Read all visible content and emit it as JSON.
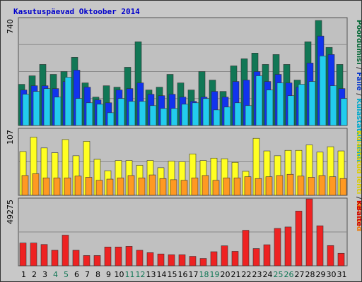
{
  "title": "Kasutuspäevad Oktoober 2014",
  "chart_data": [
    {
      "type": "bar",
      "ymax_label": "740",
      "ymax": 740,
      "side_label_parts": [
        {
          "text": "Pöördumisi",
          "color": "#006633"
        },
        {
          "text": " / ",
          "color": "#333333"
        },
        {
          "text": "Faile",
          "color": "#0033cc"
        },
        {
          "text": " / ",
          "color": "#333333"
        },
        {
          "text": "Külastatud lehti",
          "color": "#00aacc"
        }
      ],
      "series": [
        {
          "name": "Pöördumisi",
          "color": "#117755",
          "values": [
            290,
            350,
            430,
            360,
            380,
            480,
            300,
            200,
            280,
            270,
            410,
            590,
            250,
            270,
            360,
            300,
            250,
            380,
            320,
            240,
            420,
            470,
            510,
            430,
            500,
            430,
            320,
            590,
            740,
            550,
            430
          ]
        },
        {
          "name": "Faile",
          "color": "#1133ee",
          "values": [
            250,
            280,
            280,
            260,
            310,
            390,
            270,
            180,
            160,
            250,
            260,
            300,
            220,
            210,
            220,
            200,
            170,
            200,
            240,
            200,
            310,
            320,
            380,
            310,
            360,
            300,
            270,
            440,
            630,
            500,
            260
          ]
        },
        {
          "name": "Külastatud lehti",
          "color": "#22ccee",
          "values": [
            220,
            240,
            260,
            200,
            340,
            190,
            160,
            150,
            90,
            190,
            170,
            170,
            140,
            120,
            120,
            150,
            160,
            190,
            110,
            130,
            160,
            140,
            350,
            250,
            300,
            210,
            290,
            310,
            490,
            280,
            190
          ]
        }
      ]
    },
    {
      "type": "bar",
      "ymax_label": "107",
      "ymax": 107,
      "side_label_parts": [
        {
          "text": "Külastatud lehti",
          "color": "#ddcc00"
        },
        {
          "text": " / ",
          "color": "#333333"
        },
        {
          "text": "Aruteid",
          "color": "#ee7700"
        }
      ],
      "series": [
        {
          "name": "Külastatud lehti",
          "color": "#ffff22",
          "values": [
            73,
            97,
            79,
            71,
            93,
            66,
            90,
            60,
            41,
            58,
            58,
            50,
            58,
            46,
            57,
            56,
            69,
            58,
            62,
            61,
            55,
            40,
            95,
            74,
            66,
            75,
            75,
            84,
            72,
            81,
            74
          ]
        },
        {
          "name": "Aruteid",
          "color": "#ff9922",
          "values": [
            33,
            36,
            29,
            29,
            29,
            32,
            30,
            25,
            27,
            29,
            33,
            29,
            34,
            28,
            26,
            25,
            29,
            33,
            25,
            29,
            29,
            31,
            28,
            31,
            33,
            35,
            32,
            30,
            33,
            31,
            28
          ]
        }
      ]
    },
    {
      "type": "bar",
      "ymax_label": "49275",
      "ymax": 49275,
      "side_label_parts": [
        {
          "text": "KBaite",
          "color": "#cc0000"
        }
      ],
      "series": [
        {
          "name": "KBaite",
          "color": "#ee2222",
          "values": [
            17300,
            17300,
            16200,
            11800,
            23300,
            11800,
            7800,
            7800,
            14300,
            14300,
            14800,
            11800,
            10000,
            9000,
            8400,
            8400,
            7200,
            5600,
            10700,
            15200,
            11000,
            27000,
            13100,
            16000,
            28400,
            29500,
            41600,
            50800,
            30400,
            15400,
            9500
          ]
        }
      ]
    }
  ],
  "x_labels": [
    {
      "text": "1",
      "weekend": false
    },
    {
      "text": "2",
      "weekend": false
    },
    {
      "text": "3",
      "weekend": false
    },
    {
      "text": "4",
      "weekend": true
    },
    {
      "text": "5",
      "weekend": true
    },
    {
      "text": "6",
      "weekend": false
    },
    {
      "text": "7",
      "weekend": false
    },
    {
      "text": "8",
      "weekend": false
    },
    {
      "text": "9",
      "weekend": false
    },
    {
      "text": "10",
      "weekend": false
    },
    {
      "text": "11",
      "weekend": true
    },
    {
      "text": "12",
      "weekend": true
    },
    {
      "text": "13",
      "weekend": false
    },
    {
      "text": "14",
      "weekend": false
    },
    {
      "text": "15",
      "weekend": false
    },
    {
      "text": "16",
      "weekend": false
    },
    {
      "text": "17",
      "weekend": false
    },
    {
      "text": "18",
      "weekend": true
    },
    {
      "text": "19",
      "weekend": true
    },
    {
      "text": "20",
      "weekend": false
    },
    {
      "text": "21",
      "weekend": false
    },
    {
      "text": "22",
      "weekend": false
    },
    {
      "text": "23",
      "weekend": false
    },
    {
      "text": "24",
      "weekend": false
    },
    {
      "text": "25",
      "weekend": true
    },
    {
      "text": "26",
      "weekend": true
    },
    {
      "text": "27",
      "weekend": false
    },
    {
      "text": "28",
      "weekend": false
    },
    {
      "text": "29",
      "weekend": false
    },
    {
      "text": "30",
      "weekend": false
    },
    {
      "text": "31",
      "weekend": false
    }
  ],
  "colors": {
    "weekday_label": "#000000",
    "weekend_label": "#117755",
    "grid": "#888888",
    "panel_border": "#555555"
  }
}
